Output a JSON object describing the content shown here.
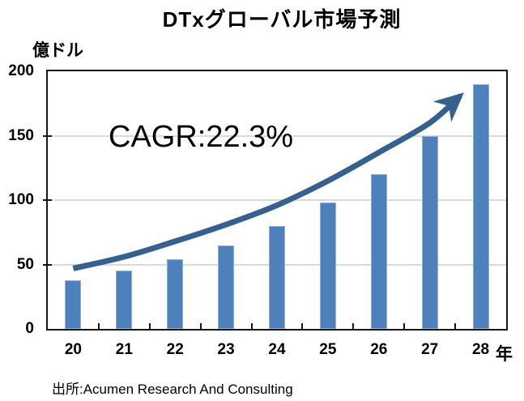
{
  "page": {
    "source": "出所:Acumen Research And Consulting"
  },
  "chart_data": {
    "type": "bar",
    "title": "DTxグローバル市場予測",
    "y_unit": "億ドル",
    "x_unit": "年",
    "categories": [
      "20",
      "21",
      "22",
      "23",
      "24",
      "25",
      "26",
      "27",
      "28"
    ],
    "values": [
      38,
      45,
      54,
      65,
      80,
      98,
      120,
      150,
      190
    ],
    "ylim": [
      0,
      200
    ],
    "yticks": [
      0,
      50,
      100,
      150,
      200
    ],
    "grid": "horizontal",
    "legend": "none",
    "annotation": "CAGR:22.3%",
    "bar_color": "#4E80BC",
    "bar_border_color": "#91AFD5",
    "arrow_color": "#36608E",
    "grid_color": "#D9D9D9",
    "trend_curve_points": [
      [
        0,
        47
      ],
      [
        1,
        56
      ],
      [
        2,
        68
      ],
      [
        3,
        81
      ],
      [
        4,
        96
      ],
      [
        5,
        115
      ],
      [
        6,
        137
      ],
      [
        7,
        160
      ],
      [
        7.6,
        181
      ]
    ]
  }
}
